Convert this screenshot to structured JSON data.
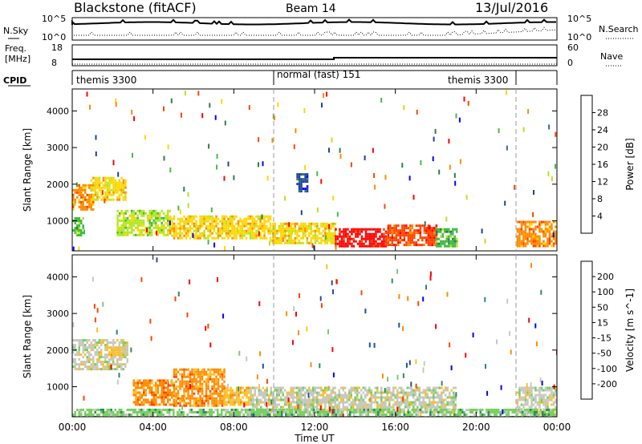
{
  "header": {
    "station": "Blackstone (fitACF)",
    "beam": "Beam 14",
    "date": "13/Jul/2016"
  },
  "nsky": {
    "label": "N.Sky",
    "ticks": [
      "10^5",
      "10^0"
    ],
    "right_label": "N.Search",
    "right_ticks": [
      "10^5",
      "10^0"
    ]
  },
  "freq": {
    "label_line1": "Freq.",
    "label_line2": "[MHz]",
    "ticks": [
      "18",
      "8"
    ],
    "right_label": "Nave",
    "right_ticks": [
      "60",
      "0"
    ]
  },
  "cpid": {
    "label": "CPID",
    "segments": [
      {
        "name": "themis 3300",
        "start_hour": 0,
        "end_hour": 10
      },
      {
        "name": "normal (fast) 151",
        "start_hour": 10,
        "end_hour": 22
      },
      {
        "name": "themis 3300",
        "start_hour": 22,
        "end_hour": 24
      }
    ]
  },
  "chart_data": [
    {
      "type": "heatmap",
      "title": "Power",
      "ylabel": "Slant Range [km]",
      "xlabel": "Time UT",
      "x_range_hours": [
        0,
        24
      ],
      "ylim": [
        180,
        4600
      ],
      "x_ticks": [
        "00:00",
        "04:00",
        "08:00",
        "12:00",
        "16:00",
        "20:00",
        "00:00"
      ],
      "x_tick_hours": [
        0,
        4,
        8,
        12,
        16,
        20,
        24
      ],
      "y_ticks": [
        1000,
        2000,
        3000,
        4000
      ],
      "colorbar": {
        "label": "Power [dB]",
        "ticks": [
          "28",
          "24",
          "20",
          "16",
          "12",
          "8",
          "4"
        ],
        "colors": [
          "#0000ff",
          "#2040a0",
          "#2e7d4f",
          "#44bb44",
          "#b5e61d",
          "#ffd700",
          "#ff8c00",
          "#ff4500",
          "#ff0000"
        ]
      },
      "regions": [
        {
          "hours": [
            0.0,
            1.0
          ],
          "range_km": [
            1300,
            2000
          ],
          "level": 6
        },
        {
          "hours": [
            0.9,
            2.6
          ],
          "range_km": [
            1600,
            2200
          ],
          "level": 5
        },
        {
          "hours": [
            0.0,
            0.5
          ],
          "range_km": [
            600,
            1100
          ],
          "level": 3
        },
        {
          "hours": [
            2.2,
            4.8
          ],
          "range_km": [
            600,
            1300
          ],
          "level": 4
        },
        {
          "hours": [
            4.8,
            9.8
          ],
          "range_km": [
            550,
            1150
          ],
          "level": 5
        },
        {
          "hours": [
            9.8,
            13.0
          ],
          "range_km": [
            400,
            950
          ],
          "level": 5
        },
        {
          "hours": [
            13.0,
            15.5
          ],
          "range_km": [
            280,
            800
          ],
          "level": 8
        },
        {
          "hours": [
            15.5,
            18.0
          ],
          "range_km": [
            330,
            900
          ],
          "level": 7
        },
        {
          "hours": [
            18.0,
            19.0
          ],
          "range_km": [
            300,
            800
          ],
          "level": 3
        },
        {
          "hours": [
            22.0,
            24.0
          ],
          "range_km": [
            300,
            1000
          ],
          "level": 6
        },
        {
          "hours": [
            11.1,
            11.6
          ],
          "range_km": [
            1800,
            2300
          ],
          "level": 1
        }
      ]
    },
    {
      "type": "heatmap",
      "title": "Velocity",
      "ylabel": "Slant Range [km]",
      "xlabel": "Time UT",
      "x_range_hours": [
        0,
        24
      ],
      "ylim": [
        180,
        4600
      ],
      "x_ticks": [
        "00:00",
        "04:00",
        "08:00",
        "12:00",
        "16:00",
        "20:00",
        "00:00"
      ],
      "x_tick_hours": [
        0,
        4,
        8,
        12,
        16,
        20,
        24
      ],
      "y_ticks": [
        1000,
        2000,
        3000,
        4000
      ],
      "colorbar": {
        "label": "Velocity [m s^-1]",
        "ticks": [
          "200",
          "100",
          "50",
          "15",
          "-15",
          "-50",
          "-100",
          "-200"
        ],
        "colors": [
          "#ff0000",
          "#ff4500",
          "#ff8c00",
          "#ffc020",
          "#c8c8c0",
          "#76d060",
          "#2e8b57",
          "#2050a0",
          "#0000ff"
        ]
      },
      "regions": [
        {
          "hours": [
            0.0,
            2.7
          ],
          "range_km": [
            1450,
            2300
          ],
          "level": 4
        },
        {
          "hours": [
            1.8,
            2.4
          ],
          "range_km": [
            1900,
            2100
          ],
          "level": 3
        },
        {
          "hours": [
            3.0,
            5.0
          ],
          "range_km": [
            500,
            1200
          ],
          "level": 2
        },
        {
          "hours": [
            5.0,
            7.5
          ],
          "range_km": [
            500,
            1500
          ],
          "level": 2
        },
        {
          "hours": [
            7.5,
            8.8
          ],
          "range_km": [
            500,
            1000
          ],
          "level": 3
        },
        {
          "hours": [
            8.8,
            19.0
          ],
          "range_km": [
            300,
            1000
          ],
          "level": 4
        },
        {
          "hours": [
            22.0,
            24.0
          ],
          "range_km": [
            250,
            1000
          ],
          "level": 4
        },
        {
          "hours": [
            0.0,
            24.0
          ],
          "range_km": [
            200,
            400
          ],
          "level": 5
        }
      ]
    }
  ]
}
